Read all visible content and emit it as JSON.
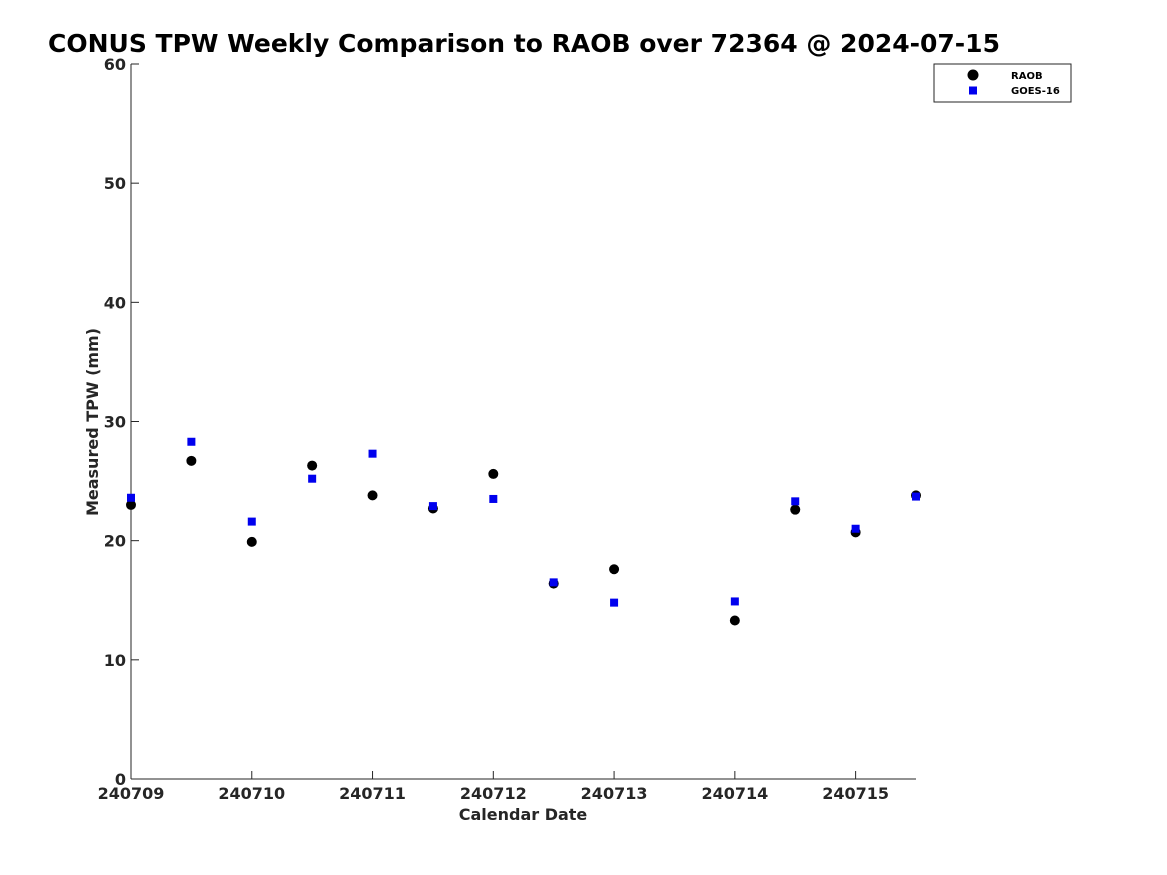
{
  "chart_data": {
    "type": "scatter",
    "title": "CONUS TPW Weekly Comparison to RAOB over 72364 @ 2024-07-15",
    "xlabel": "Calendar Date",
    "ylabel": "Measured TPW (mm)",
    "ylim": [
      0,
      60
    ],
    "xlim": [
      "2024-07-09",
      "2024-07-15 12:00"
    ],
    "yticks": [
      0,
      10,
      20,
      30,
      40,
      50,
      60
    ],
    "xticks": [
      "240709",
      "240710",
      "240711",
      "240712",
      "240713",
      "240714",
      "240715"
    ],
    "grid": false,
    "legend_position": "top-right",
    "series": [
      {
        "name": "RAOB",
        "marker": "circle",
        "color": "#000000",
        "points": [
          {
            "x": "2024-07-09 00:00",
            "y": 23.0
          },
          {
            "x": "2024-07-09 12:00",
            "y": 26.7
          },
          {
            "x": "2024-07-10 00:00",
            "y": 19.9
          },
          {
            "x": "2024-07-10 12:00",
            "y": 26.3
          },
          {
            "x": "2024-07-11 00:00",
            "y": 23.8
          },
          {
            "x": "2024-07-11 12:00",
            "y": 22.7
          },
          {
            "x": "2024-07-12 00:00",
            "y": 25.6
          },
          {
            "x": "2024-07-12 12:00",
            "y": 16.4
          },
          {
            "x": "2024-07-13 00:00",
            "y": 17.6
          },
          {
            "x": "2024-07-14 00:00",
            "y": 13.3
          },
          {
            "x": "2024-07-14 12:00",
            "y": 22.6
          },
          {
            "x": "2024-07-15 00:00",
            "y": 20.7
          },
          {
            "x": "2024-07-15 12:00",
            "y": 23.8
          }
        ]
      },
      {
        "name": "GOES-16",
        "marker": "square",
        "color": "#0000ee",
        "points": [
          {
            "x": "2024-07-09 00:00",
            "y": 23.6
          },
          {
            "x": "2024-07-09 12:00",
            "y": 28.3
          },
          {
            "x": "2024-07-10 00:00",
            "y": 21.6
          },
          {
            "x": "2024-07-10 12:00",
            "y": 25.2
          },
          {
            "x": "2024-07-11 00:00",
            "y": 27.3
          },
          {
            "x": "2024-07-11 12:00",
            "y": 22.9
          },
          {
            "x": "2024-07-12 00:00",
            "y": 23.5
          },
          {
            "x": "2024-07-12 12:00",
            "y": 16.5
          },
          {
            "x": "2024-07-13 00:00",
            "y": 14.8
          },
          {
            "x": "2024-07-14 00:00",
            "y": 14.9
          },
          {
            "x": "2024-07-14 12:00",
            "y": 23.3
          },
          {
            "x": "2024-07-15 00:00",
            "y": 21.0
          },
          {
            "x": "2024-07-15 12:00",
            "y": 23.7
          }
        ]
      }
    ]
  }
}
